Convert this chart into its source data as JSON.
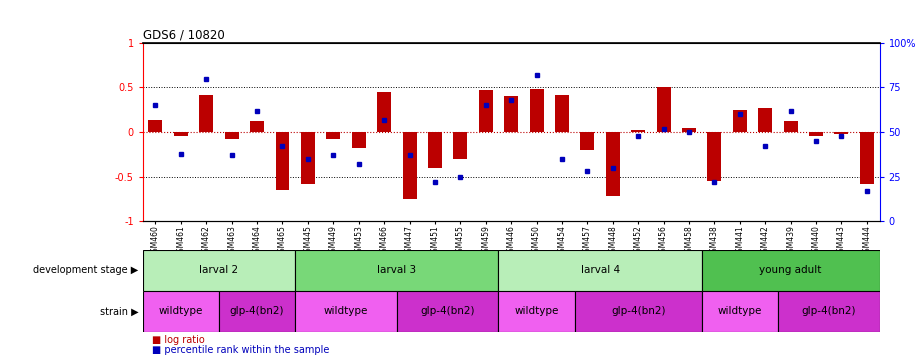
{
  "title": "GDS6 / 10820",
  "samples": [
    "GSM460",
    "GSM461",
    "GSM462",
    "GSM463",
    "GSM464",
    "GSM465",
    "GSM445",
    "GSM449",
    "GSM453",
    "GSM466",
    "GSM447",
    "GSM451",
    "GSM455",
    "GSM459",
    "GSM446",
    "GSM450",
    "GSM454",
    "GSM457",
    "GSM448",
    "GSM452",
    "GSM456",
    "GSM458",
    "GSM438",
    "GSM441",
    "GSM442",
    "GSM439",
    "GSM440",
    "GSM443",
    "GSM444"
  ],
  "log_ratio": [
    0.14,
    -0.04,
    0.42,
    -0.08,
    0.12,
    -0.65,
    -0.58,
    -0.08,
    -0.18,
    0.45,
    -0.75,
    -0.4,
    -0.3,
    0.47,
    0.4,
    0.48,
    0.42,
    -0.2,
    -0.72,
    0.02,
    0.5,
    0.05,
    -0.55,
    0.25,
    0.27,
    0.12,
    -0.04,
    -0.02,
    -0.58
  ],
  "percentile": [
    65,
    38,
    80,
    37,
    62,
    42,
    35,
    37,
    32,
    57,
    37,
    22,
    25,
    65,
    68,
    82,
    35,
    28,
    30,
    48,
    52,
    50,
    22,
    60,
    42,
    62,
    45,
    48,
    17
  ],
  "dev_stages": [
    {
      "label": "larval 2",
      "start": 0,
      "end": 6,
      "color": "#b8eeb8"
    },
    {
      "label": "larval 3",
      "start": 6,
      "end": 14,
      "color": "#78d878"
    },
    {
      "label": "larval 4",
      "start": 14,
      "end": 22,
      "color": "#b8eeb8"
    },
    {
      "label": "young adult",
      "start": 22,
      "end": 29,
      "color": "#50c050"
    }
  ],
  "strains": [
    {
      "label": "wildtype",
      "start": 0,
      "end": 3,
      "color": "#f060f0"
    },
    {
      "label": "glp-4(bn2)",
      "start": 3,
      "end": 6,
      "color": "#cc30cc"
    },
    {
      "label": "wildtype",
      "start": 6,
      "end": 10,
      "color": "#f060f0"
    },
    {
      "label": "glp-4(bn2)",
      "start": 10,
      "end": 14,
      "color": "#cc30cc"
    },
    {
      "label": "wildtype",
      "start": 14,
      "end": 17,
      "color": "#f060f0"
    },
    {
      "label": "glp-4(bn2)",
      "start": 17,
      "end": 22,
      "color": "#cc30cc"
    },
    {
      "label": "wildtype",
      "start": 22,
      "end": 25,
      "color": "#f060f0"
    },
    {
      "label": "glp-4(bn2)",
      "start": 25,
      "end": 29,
      "color": "#cc30cc"
    }
  ],
  "ylim": [
    -1,
    1
  ],
  "y2lim": [
    0,
    100
  ],
  "yticks_left": [
    -1,
    -0.5,
    0,
    0.5,
    1
  ],
  "ytick_labels_left": [
    "-1",
    "-0.5",
    "0",
    "0.5",
    "1"
  ],
  "y2ticks": [
    0,
    25,
    50,
    75,
    100
  ],
  "y2tick_labels": [
    "0",
    "25",
    "50",
    "75",
    "100%"
  ],
  "bar_color": "#bb0000",
  "dot_color": "#0000bb",
  "bar_width": 0.55,
  "fig_width": 9.21,
  "fig_height": 3.57,
  "dpi": 100
}
